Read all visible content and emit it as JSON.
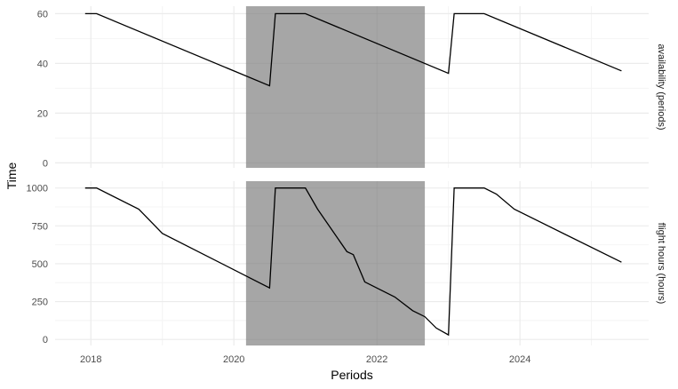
{
  "chart_data": {
    "type": "line",
    "xlabel": "Periods",
    "ylabel": "Time",
    "xlim": [
      2017.5,
      2025.8
    ],
    "x_ticks": [
      2018,
      2020,
      2022,
      2024
    ],
    "x_tick_labels": [
      "2018",
      "2020",
      "2022",
      "2024"
    ],
    "x_minor_ticks": [
      2019,
      2021,
      2023,
      2025
    ],
    "grid": true,
    "shaded_region": {
      "x_start": 2020.17,
      "x_end": 2022.67,
      "color": "#a6a6a6"
    },
    "colors": {
      "line": "#000000",
      "grid_major": "#ebebeb",
      "grid_minor": "#f4f4f4",
      "shade": "#a6a6a6"
    },
    "panels": [
      {
        "strip_label": "availability (periods)",
        "ylim": [
          -2,
          63
        ],
        "y_ticks": [
          0,
          20,
          40,
          60
        ],
        "y_tick_labels": [
          "0",
          "20",
          "40",
          "60"
        ],
        "y_minor_ticks": [
          10,
          30,
          50
        ],
        "series": [
          {
            "x": [
              2017.92,
              2018.08,
              2020.5,
              2020.58,
              2021.0,
              2023.0,
              2023.08,
              2023.5,
              2025.42
            ],
            "y": [
              60,
              60,
              31,
              60,
              60,
              36,
              60,
              60,
              37
            ]
          }
        ]
      },
      {
        "strip_label": "flight hours (hours)",
        "ylim": [
          -40,
          1045
        ],
        "y_ticks": [
          0,
          250,
          500,
          750,
          1000
        ],
        "y_tick_labels": [
          "0",
          "250",
          "500",
          "750",
          "1000"
        ],
        "y_minor_ticks": [
          125,
          375,
          625,
          875
        ],
        "series": [
          {
            "x": [
              2017.92,
              2018.08,
              2018.67,
              2019.0,
              2020.5,
              2020.58,
              2021.0,
              2021.17,
              2021.58,
              2021.67,
              2021.83,
              2022.25,
              2022.5,
              2022.67,
              2022.83,
              2023.0,
              2023.08,
              2023.5,
              2023.67,
              2023.92,
              2025.42
            ],
            "y": [
              1000,
              1000,
              860,
              700,
              340,
              1000,
              1000,
              860,
              580,
              560,
              380,
              280,
              190,
              150,
              75,
              30,
              1000,
              1000,
              960,
              860,
              510
            ]
          }
        ]
      }
    ]
  }
}
